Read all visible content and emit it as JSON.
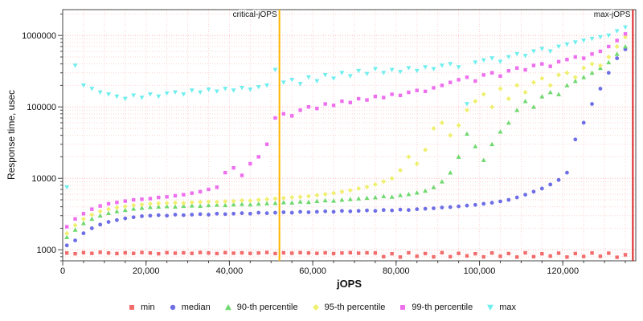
{
  "chart_data": {
    "type": "scatter",
    "title": "",
    "xlabel": "jOPS",
    "ylabel": "Response time, usec",
    "y_scale": "log",
    "xlim": [
      0,
      137500
    ],
    "ylim": [
      700,
      2300000
    ],
    "x_ticks": [
      0,
      20000,
      40000,
      60000,
      80000,
      100000,
      120000
    ],
    "y_ticks": [
      1000,
      10000,
      100000,
      1000000
    ],
    "grid": {
      "x_minor_step": 5000,
      "color_minor": "#ffd2d2",
      "color_major": "#ffb4b4"
    },
    "annotations": [
      {
        "label": "critical-jOPS",
        "x": 52000,
        "color": "#ffb400"
      },
      {
        "label": "max-jOPS",
        "x": 136800,
        "color": "#dd2222"
      }
    ],
    "x": [
      1000,
      3000,
      5000,
      7000,
      9000,
      11000,
      13000,
      15000,
      17000,
      19000,
      21000,
      23000,
      25000,
      27000,
      29000,
      31000,
      33000,
      35000,
      37000,
      39000,
      41000,
      43000,
      45000,
      47000,
      49000,
      51000,
      53000,
      55000,
      57000,
      59000,
      61000,
      63000,
      65000,
      67000,
      69000,
      71000,
      73000,
      75000,
      77000,
      79000,
      81000,
      83000,
      85000,
      87000,
      89000,
      91000,
      93000,
      95000,
      97000,
      99000,
      101000,
      103000,
      105000,
      107000,
      109000,
      111000,
      113000,
      115000,
      117000,
      119000,
      121000,
      123000,
      125000,
      127000,
      129000,
      131000,
      133000,
      135000
    ],
    "series": [
      {
        "name": "min",
        "marker": "square",
        "color": "#f26c6c",
        "values": [
          900,
          880,
          910,
          890,
          920,
          900,
          885,
          905,
          890,
          915,
          900,
          880,
          910,
          895,
          905,
          890,
          915,
          900,
          885,
          910,
          895,
          905,
          890,
          900,
          915,
          885,
          905,
          895,
          910,
          900,
          890,
          905,
          885,
          900,
          910,
          895,
          905,
          900,
          800,
          880,
          790,
          905,
          810,
          885,
          795,
          910,
          800,
          890,
          820,
          880,
          795,
          900,
          810,
          885,
          790,
          905,
          800,
          880,
          815,
          895,
          790,
          885,
          805,
          900,
          810,
          895,
          785,
          850
        ]
      },
      {
        "name": "median",
        "marker": "circle",
        "color": "#6e6ee6",
        "values": [
          1150,
          1350,
          1700,
          2000,
          2250,
          2450,
          2600,
          2750,
          2850,
          2950,
          3000,
          3050,
          3000,
          3100,
          3050,
          3100,
          3150,
          3100,
          3200,
          3150,
          3200,
          3250,
          3200,
          3300,
          3250,
          3300,
          3350,
          3300,
          3400,
          3350,
          3400,
          3450,
          3400,
          3500,
          3450,
          3500,
          3550,
          3500,
          3600,
          3550,
          3650,
          3600,
          3700,
          3750,
          3800,
          3900,
          3950,
          4050,
          4150,
          4250,
          4400,
          4550,
          4750,
          5000,
          5400,
          5900,
          6500,
          7200,
          8200,
          9500,
          12000,
          35000,
          60000,
          110000,
          180000,
          300000,
          480000,
          640000
        ]
      },
      {
        "name": "90-th percentile",
        "marker": "triangle-up",
        "color": "#6fd96f",
        "values": [
          1500,
          1900,
          2350,
          2700,
          3000,
          3250,
          3450,
          3600,
          3750,
          3850,
          3950,
          4000,
          4050,
          4000,
          4100,
          4150,
          4100,
          4200,
          4250,
          4200,
          4300,
          4350,
          4300,
          4400,
          4450,
          4500,
          4600,
          4550,
          4700,
          4650,
          4800,
          4900,
          4850,
          5000,
          5100,
          5200,
          5300,
          5400,
          5600,
          5500,
          5800,
          6000,
          6300,
          6700,
          7500,
          9000,
          12000,
          20000,
          42000,
          28000,
          18000,
          30000,
          45000,
          60000,
          90000,
          120000,
          100000,
          140000,
          160000,
          150000,
          200000,
          230000,
          260000,
          300000,
          350000,
          420000,
          550000,
          700000
        ]
      },
      {
        "name": "95-th percentile",
        "marker": "diamond",
        "color": "#efef70",
        "values": [
          1700,
          2200,
          2700,
          3100,
          3450,
          3700,
          3900,
          4050,
          4200,
          4300,
          4400,
          4450,
          4500,
          4550,
          4500,
          4600,
          4650,
          4700,
          4650,
          4750,
          4800,
          4900,
          4850,
          5000,
          5100,
          5200,
          5300,
          5400,
          5500,
          5600,
          5800,
          6000,
          6200,
          6500,
          6800,
          7200,
          7600,
          8200,
          9000,
          10000,
          13000,
          20000,
          16000,
          25000,
          50000,
          60000,
          40000,
          55000,
          90000,
          120000,
          150000,
          100000,
          180000,
          130000,
          200000,
          160000,
          220000,
          250000,
          200000,
          280000,
          300000,
          260000,
          350000,
          400000,
          380000,
          500000,
          700000,
          950000
        ]
      },
      {
        "name": "99-th percentile",
        "marker": "square",
        "color": "#ee6fee",
        "values": [
          2100,
          2700,
          3200,
          3700,
          4100,
          4400,
          4600,
          4800,
          5000,
          5100,
          5200,
          5400,
          5500,
          5700,
          5900,
          6200,
          6500,
          7000,
          7500,
          12000,
          14000,
          11000,
          16000,
          20000,
          30000,
          70000,
          80000,
          75000,
          90000,
          100000,
          95000,
          110000,
          105000,
          120000,
          115000,
          130000,
          125000,
          140000,
          135000,
          150000,
          145000,
          160000,
          170000,
          165000,
          185000,
          200000,
          220000,
          240000,
          260000,
          230000,
          280000,
          300000,
          270000,
          320000,
          350000,
          330000,
          380000,
          400000,
          370000,
          430000,
          460000,
          500000,
          480000,
          550000,
          600000,
          700000,
          850000,
          1050000
        ]
      },
      {
        "name": "max",
        "marker": "triangle-down",
        "color": "#70eeee",
        "values": [
          7500,
          380000,
          200000,
          180000,
          160000,
          150000,
          140000,
          130000,
          145000,
          135000,
          150000,
          140000,
          155000,
          160000,
          150000,
          170000,
          160000,
          175000,
          165000,
          180000,
          170000,
          185000,
          175000,
          190000,
          200000,
          330000,
          220000,
          240000,
          210000,
          260000,
          230000,
          280000,
          250000,
          300000,
          270000,
          320000,
          290000,
          340000,
          300000,
          330000,
          310000,
          350000,
          320000,
          360000,
          340000,
          380000,
          400000,
          360000,
          110000,
          420000,
          450000,
          480000,
          430000,
          500000,
          550000,
          520000,
          600000,
          650000,
          600000,
          700000,
          750000,
          800000,
          850000,
          900000,
          950000,
          1000000,
          1150000,
          1300000
        ]
      }
    ]
  }
}
